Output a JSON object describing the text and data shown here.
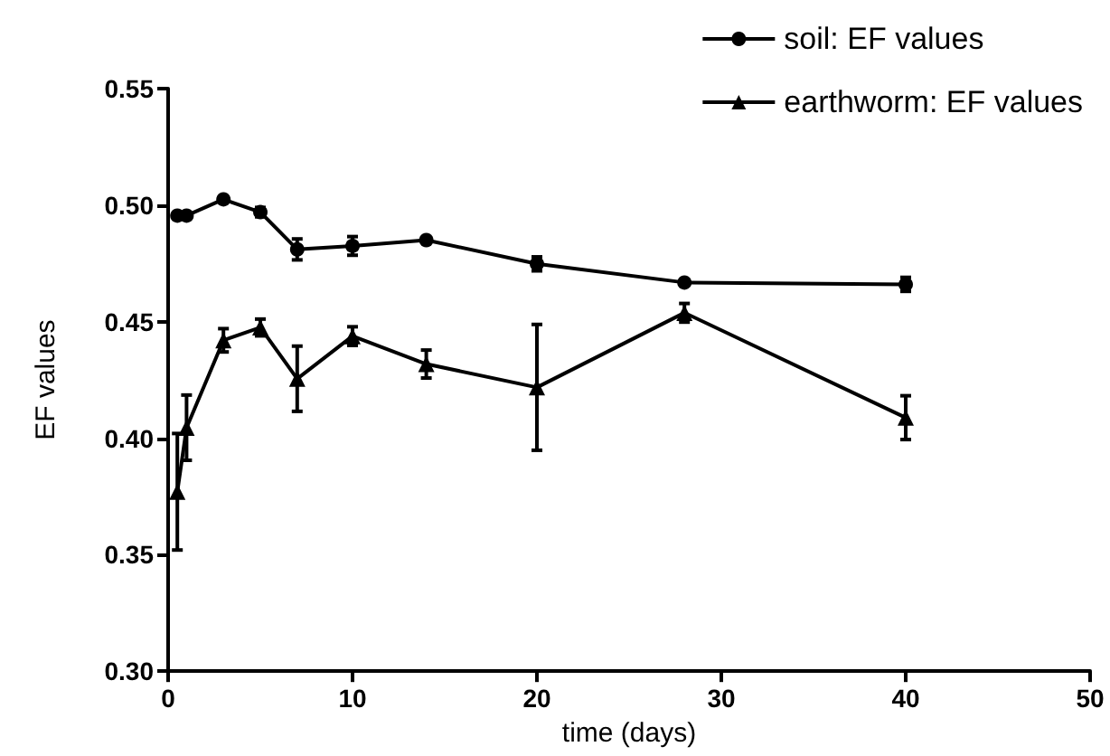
{
  "chart_data": {
    "type": "line",
    "xlabel": "time (days)",
    "ylabel": "EF values",
    "xlim": [
      0,
      50
    ],
    "xticks": [
      0,
      10,
      20,
      30,
      40,
      50
    ],
    "ylim": [
      0.3,
      0.55
    ],
    "yticks": [
      {
        "value": 0.3,
        "label": "0.30"
      },
      {
        "value": 0.35,
        "label": "0.35"
      },
      {
        "value": 0.4,
        "label": "0.40"
      },
      {
        "value": 0.45,
        "label": "0.45"
      },
      {
        "value": 0.5,
        "label": "0.50"
      },
      {
        "value": 0.55,
        "label": "0.55"
      }
    ],
    "grid": false,
    "legend": "top right",
    "line_style": "solid",
    "series": [
      {
        "name": "soil: EF values",
        "color": "#000000",
        "marker": "circle",
        "x": [
          0.5,
          1,
          3,
          5,
          7,
          10,
          14,
          20,
          28,
          40
        ],
        "values": [
          0.4955,
          0.4955,
          0.5025,
          0.497,
          0.481,
          0.4825,
          0.485,
          0.4748,
          0.4668,
          0.466
        ],
        "errors": [
          null,
          null,
          null,
          0.002,
          0.0045,
          0.004,
          null,
          0.003,
          null,
          0.003
        ]
      },
      {
        "name": "earthworm: EF values",
        "color": "#000000",
        "marker": "triangle",
        "x": [
          0.5,
          1,
          3,
          5,
          7,
          10,
          14,
          20,
          28,
          40
        ],
        "values": [
          0.377,
          0.4045,
          0.442,
          0.4475,
          0.4255,
          0.4438,
          0.4318,
          0.4218,
          0.4538,
          0.4088
        ],
        "errors": [
          0.025,
          0.014,
          0.005,
          0.0036,
          0.014,
          0.004,
          0.006,
          0.027,
          0.004,
          0.0094
        ]
      }
    ]
  }
}
